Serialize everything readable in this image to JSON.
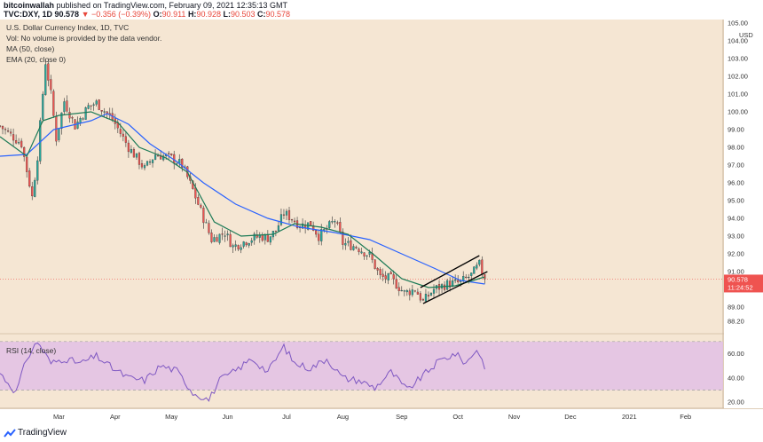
{
  "header": {
    "author": "bitcoinwallah",
    "published": "published on TradingView.com, February 09, 2021 12:35:13 GMT",
    "symbol": "TVC:DXY, 1D",
    "last": "90.578",
    "change": "▼ −0.356 (−0.39%)",
    "o_label": "O:",
    "o_val": "90.911",
    "h_label": "H:",
    "h_val": "90.928",
    "l_label": "L:",
    "l_val": "90.503",
    "c_label": "C:",
    "c_val": "90.578"
  },
  "legend": {
    "title": "U.S. Dollar Currency Index, 1D, TVC",
    "vol": "Vol: No volume is provided by the data vendor.",
    "ma": "MA (50, close)",
    "ema": "EMA (20, close 0)"
  },
  "rsi_label": "RSI (14, close)",
  "price_badge": "90.578",
  "time_badge": "11:24:52",
  "currency": "USD",
  "footer_brand": "TradingView",
  "colors": {
    "up": "#26a69a",
    "down": "#ef5350",
    "ma": "#2962ff",
    "ema": "#1b7a56",
    "rsi": "#7e57c2",
    "rsi_band": "#e1bee7",
    "badge": "#ef5350"
  },
  "chart_data": {
    "type": "candlestick",
    "price_axis": {
      "ticks": [
        88.2,
        89.0,
        90.0,
        91.0,
        92.0,
        93.0,
        94.0,
        95.0,
        96.0,
        97.0,
        98.0,
        99.0,
        100.0,
        101.0,
        102.0,
        103.0,
        104.0,
        105.0
      ],
      "tick_labels": [
        "88.20",
        "89.00",
        "90.00",
        "91.00",
        "92.00",
        "93.00",
        "94.00",
        "95.00",
        "96.00",
        "97.00",
        "98.00",
        "99.00",
        "100.00",
        "101.00",
        "102.00",
        "103.00",
        "104.00",
        "105.00"
      ],
      "range": [
        87.6,
        105.2
      ]
    },
    "time_axis": {
      "labels": [
        "Mar",
        "Apr",
        "May",
        "Jun",
        "Jul",
        "Aug",
        "Sep",
        "Oct",
        "Nov",
        "Dec",
        "2021",
        "Feb"
      ],
      "positions": [
        22,
        43,
        64,
        85,
        107,
        128,
        150,
        171,
        192,
        213,
        235,
        256
      ],
      "range": [
        0,
        270
      ]
    },
    "anchors": [
      [
        0,
        99.2
      ],
      [
        8,
        98.2
      ],
      [
        12,
        95.2
      ],
      [
        14,
        97.5
      ],
      [
        17,
        102.8
      ],
      [
        19,
        101.0
      ],
      [
        21,
        98.5
      ],
      [
        24,
        100.6
      ],
      [
        28,
        99.2
      ],
      [
        33,
        100.3
      ],
      [
        36,
        100.5
      ],
      [
        42,
        99.6
      ],
      [
        48,
        98.0
      ],
      [
        54,
        96.8
      ],
      [
        58,
        97.6
      ],
      [
        64,
        97.4
      ],
      [
        68,
        97.0
      ],
      [
        72,
        95.6
      ],
      [
        76,
        94.0
      ],
      [
        79,
        92.8
      ],
      [
        84,
        93.2
      ],
      [
        87,
        92.4
      ],
      [
        90,
        92.6
      ],
      [
        93,
        92.8
      ],
      [
        97,
        93.0
      ],
      [
        100,
        92.9
      ],
      [
        103,
        93.3
      ],
      [
        106,
        94.3
      ],
      [
        109,
        94.0
      ],
      [
        112,
        93.6
      ],
      [
        116,
        93.7
      ],
      [
        119,
        93.0
      ],
      [
        122,
        93.4
      ],
      [
        125,
        93.9
      ],
      [
        128,
        92.6
      ],
      [
        133,
        92.4
      ],
      [
        138,
        91.9
      ],
      [
        142,
        90.7
      ],
      [
        146,
        90.6
      ],
      [
        151,
        89.8
      ],
      [
        155,
        90.0
      ],
      [
        158,
        89.3
      ],
      [
        162,
        90.0
      ],
      [
        167,
        90.3
      ],
      [
        172,
        90.4
      ],
      [
        176,
        90.8
      ],
      [
        179,
        91.4
      ],
      [
        181,
        90.578
      ]
    ],
    "last_close": 90.578,
    "ma50_anchors": [
      [
        0,
        97.5
      ],
      [
        10,
        97.6
      ],
      [
        20,
        99.0
      ],
      [
        34,
        99.5
      ],
      [
        40,
        99.9
      ],
      [
        48,
        99.3
      ],
      [
        56,
        98.2
      ],
      [
        66,
        97.2
      ],
      [
        76,
        96.0
      ],
      [
        88,
        94.8
      ],
      [
        100,
        94.0
      ],
      [
        112,
        93.5
      ],
      [
        125,
        93.2
      ],
      [
        138,
        92.8
      ],
      [
        150,
        92.0
      ],
      [
        162,
        91.2
      ],
      [
        172,
        90.5
      ],
      [
        181,
        90.3
      ]
    ],
    "ema20_anchors": [
      [
        0,
        98.6
      ],
      [
        10,
        97.5
      ],
      [
        16,
        99.5
      ],
      [
        22,
        99.8
      ],
      [
        34,
        100.0
      ],
      [
        44,
        99.4
      ],
      [
        52,
        98.0
      ],
      [
        62,
        97.4
      ],
      [
        70,
        96.6
      ],
      [
        80,
        93.8
      ],
      [
        90,
        93.0
      ],
      [
        102,
        93.1
      ],
      [
        110,
        93.7
      ],
      [
        120,
        93.5
      ],
      [
        130,
        93.1
      ],
      [
        140,
        91.9
      ],
      [
        150,
        90.6
      ],
      [
        160,
        90.1
      ],
      [
        170,
        90.2
      ],
      [
        181,
        90.7
      ]
    ],
    "channel": {
      "upper": [
        [
          157,
          90.1
        ],
        [
          179,
          91.9
        ]
      ],
      "lower": [
        [
          158,
          89.2
        ],
        [
          182,
          91.0
        ]
      ]
    },
    "rsi": {
      "ticks": [
        20,
        40,
        60
      ],
      "tick_labels": [
        "20.00",
        "40.00",
        "60.00"
      ],
      "band": [
        30,
        70
      ],
      "range": [
        15,
        75
      ],
      "anchors": [
        [
          0,
          44
        ],
        [
          6,
          28
        ],
        [
          10,
          56
        ],
        [
          14,
          70
        ],
        [
          19,
          52
        ],
        [
          24,
          56
        ],
        [
          30,
          52
        ],
        [
          36,
          58
        ],
        [
          42,
          48
        ],
        [
          48,
          40
        ],
        [
          54,
          38
        ],
        [
          60,
          50
        ],
        [
          66,
          46
        ],
        [
          72,
          28
        ],
        [
          78,
          22
        ],
        [
          82,
          38
        ],
        [
          88,
          46
        ],
        [
          94,
          56
        ],
        [
          100,
          45
        ],
        [
          106,
          66
        ],
        [
          110,
          52
        ],
        [
          116,
          48
        ],
        [
          122,
          56
        ],
        [
          128,
          40
        ],
        [
          134,
          38
        ],
        [
          140,
          32
        ],
        [
          146,
          45
        ],
        [
          152,
          30
        ],
        [
          158,
          42
        ],
        [
          164,
          54
        ],
        [
          170,
          60
        ],
        [
          174,
          52
        ],
        [
          178,
          64
        ],
        [
          181,
          50
        ]
      ]
    }
  }
}
